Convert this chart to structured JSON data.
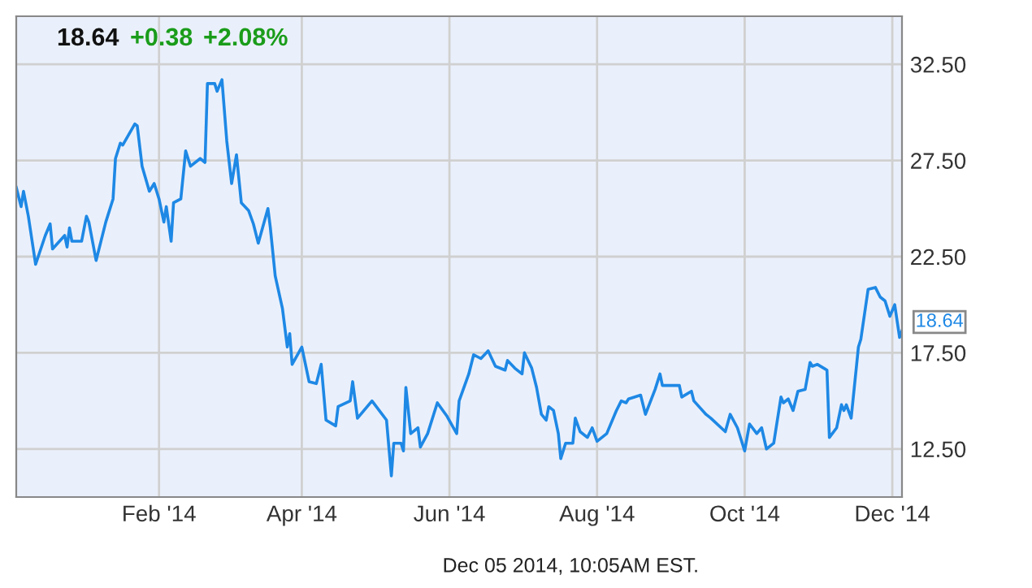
{
  "chart_data": {
    "type": "line",
    "title": "18.64",
    "annotations": [
      "+0.38",
      "+2.08%",
      "Dec 05 2014, 10:05AM EST.",
      {
        "text": "18.64",
        "x": "2014-12-05",
        "y": 18.64
      }
    ],
    "x": [
      "2013-12-04",
      "2013-12-06",
      "2013-12-07",
      "2013-12-09",
      "2013-12-12",
      "2013-12-16",
      "2013-12-18",
      "2013-12-19",
      "2013-12-24",
      "2013-12-25",
      "2013-12-26",
      "2013-12-27",
      "2013-12-31",
      "2014-01-02",
      "2014-01-03",
      "2014-01-06",
      "2014-01-10",
      "2014-01-13",
      "2014-01-14",
      "2014-01-16",
      "2014-01-17",
      "2014-01-22",
      "2014-01-23",
      "2014-01-25",
      "2014-01-28",
      "2014-01-30",
      "2014-02-01",
      "2014-02-03",
      "2014-02-04",
      "2014-02-06",
      "2014-02-07",
      "2014-02-10",
      "2014-02-12",
      "2014-02-14",
      "2014-02-18",
      "2014-02-20",
      "2014-02-21",
      "2014-02-24",
      "2014-02-25",
      "2014-02-27",
      "2014-03-01",
      "2014-03-03",
      "2014-03-05",
      "2014-03-07",
      "2014-03-10",
      "2014-03-12",
      "2014-03-14",
      "2014-03-18",
      "2014-03-19",
      "2014-03-21",
      "2014-03-24",
      "2014-03-26",
      "2014-03-27",
      "2014-03-28",
      "2014-04-01",
      "2014-04-04",
      "2014-04-07",
      "2014-04-09",
      "2014-04-11",
      "2014-04-15",
      "2014-04-16",
      "2014-04-21",
      "2014-04-22",
      "2014-04-24",
      "2014-04-30",
      "2014-05-06",
      "2014-05-08",
      "2014-05-09",
      "2014-05-12",
      "2014-05-13",
      "2014-05-14",
      "2014-05-16",
      "2014-05-19",
      "2014-05-20",
      "2014-05-23",
      "2014-05-27",
      "2014-05-31",
      "2014-06-04",
      "2014-06-05",
      "2014-06-09",
      "2014-06-11",
      "2014-06-14",
      "2014-06-17",
      "2014-06-20",
      "2014-06-24",
      "2014-06-25",
      "2014-06-28",
      "2014-07-01",
      "2014-07-02",
      "2014-07-05",
      "2014-07-07",
      "2014-07-09",
      "2014-07-11",
      "2014-07-12",
      "2014-07-14",
      "2014-07-16",
      "2014-07-17",
      "2014-07-19",
      "2014-07-22",
      "2014-07-23",
      "2014-07-25",
      "2014-07-28",
      "2014-07-30",
      "2014-08-01",
      "2014-08-05",
      "2014-08-09",
      "2014-08-11",
      "2014-08-13",
      "2014-08-14",
      "2014-08-19",
      "2014-08-21",
      "2014-08-25",
      "2014-08-27",
      "2014-08-28",
      "2014-09-04",
      "2014-09-05",
      "2014-09-09",
      "2014-09-10",
      "2014-09-15",
      "2014-09-17",
      "2014-09-23",
      "2014-09-25",
      "2014-09-28",
      "2014-10-01",
      "2014-10-03",
      "2014-10-06",
      "2014-10-08",
      "2014-10-10",
      "2014-10-13",
      "2014-10-16",
      "2014-10-17",
      "2014-10-19",
      "2014-10-21",
      "2014-10-23",
      "2014-10-26",
      "2014-10-28",
      "2014-10-29",
      "2014-10-31",
      "2014-11-04",
      "2014-11-05",
      "2014-11-08",
      "2014-11-10",
      "2014-11-11",
      "2014-11-12",
      "2014-11-14",
      "2014-11-17",
      "2014-11-18",
      "2014-11-21",
      "2014-11-24",
      "2014-11-26",
      "2014-11-28",
      "2014-11-30",
      "2014-12-02",
      "2014-12-04",
      "2014-12-05"
    ],
    "series": [
      {
        "color": "#1e88e5",
        "values": [
          26.1,
          25.1,
          25.9,
          24.6,
          22.1,
          23.6,
          24.2,
          22.9,
          23.6,
          23.0,
          24.0,
          23.3,
          23.3,
          24.6,
          24.3,
          22.3,
          24.3,
          25.5,
          27.6,
          28.4,
          28.3,
          29.4,
          29.3,
          27.2,
          25.9,
          26.3,
          25.5,
          24.3,
          25.1,
          23.3,
          25.3,
          25.5,
          28.0,
          27.2,
          27.6,
          27.4,
          31.5,
          31.5,
          31.1,
          31.7,
          28.5,
          26.3,
          27.8,
          25.3,
          24.9,
          24.2,
          23.2,
          25.0,
          24.0,
          21.5,
          19.8,
          17.8,
          18.5,
          16.9,
          17.8,
          16.0,
          15.9,
          16.9,
          14.0,
          13.7,
          14.7,
          15.0,
          16.0,
          14.1,
          15.0,
          14.0,
          11.1,
          12.8,
          12.8,
          12.4,
          15.7,
          13.3,
          13.6,
          12.6,
          13.3,
          14.9,
          14.2,
          13.3,
          15.0,
          16.4,
          17.4,
          17.2,
          17.6,
          16.8,
          16.6,
          17.1,
          16.7,
          16.4,
          17.5,
          16.7,
          15.7,
          14.3,
          14.0,
          14.7,
          14.5,
          13.3,
          12.0,
          12.8,
          12.8,
          14.1,
          13.4,
          13.1,
          13.6,
          12.9,
          13.3,
          14.5,
          15.0,
          14.9,
          15.1,
          15.3,
          14.3,
          15.6,
          16.4,
          15.8,
          15.8,
          15.2,
          15.5,
          15.0,
          14.3,
          14.1,
          13.4,
          14.3,
          13.6,
          12.4,
          13.8,
          13.3,
          13.6,
          12.5,
          12.8,
          15.2,
          14.9,
          15.1,
          14.5,
          15.5,
          15.6,
          17.0,
          16.8,
          16.9,
          16.6,
          13.1,
          13.6,
          14.8,
          14.5,
          14.8,
          14.1,
          17.8,
          18.2,
          20.8,
          20.9,
          20.4,
          20.2,
          19.4,
          20.0,
          18.3,
          18.64
        ]
      }
    ],
    "xlim": [
      "2013-12-04",
      "2014-12-05"
    ],
    "xticks": [
      {
        "value": "2014-02-01",
        "label": "Feb '14"
      },
      {
        "value": "2014-04-01",
        "label": "Apr '14"
      },
      {
        "value": "2014-06-01",
        "label": "Jun '14"
      },
      {
        "value": "2014-08-01",
        "label": "Aug '14"
      },
      {
        "value": "2014-10-01",
        "label": "Oct '14"
      },
      {
        "value": "2014-12-01",
        "label": "Dec '14"
      }
    ],
    "ylim": [
      10,
      35
    ],
    "yticks": [
      {
        "value": 12.5,
        "label": "12.50"
      },
      {
        "value": 17.5,
        "label": "17.50"
      },
      {
        "value": 22.5,
        "label": "22.50"
      },
      {
        "value": 27.5,
        "label": "27.50"
      },
      {
        "value": 32.5,
        "label": "32.50"
      }
    ],
    "grid": true,
    "legend": false,
    "marker": "none",
    "line_style": "solid"
  }
}
